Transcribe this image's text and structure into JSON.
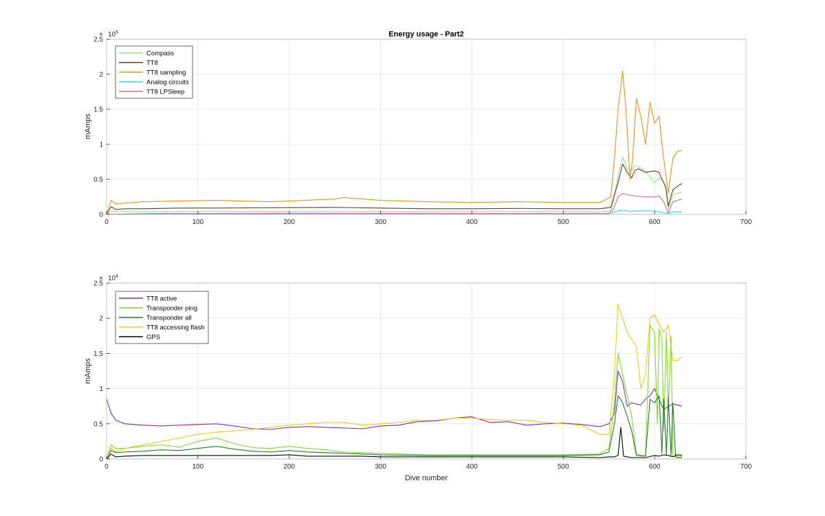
{
  "chart_data": [
    {
      "type": "line",
      "title": "Energy usage - Part2",
      "xlabel": "",
      "ylabel": "mAmps",
      "xlim": [
        0,
        700
      ],
      "ylim": [
        0,
        250000
      ],
      "xticks": [
        0,
        100,
        200,
        300,
        400,
        500,
        600,
        700
      ],
      "yticks": [
        0,
        0.5,
        1,
        1.5,
        2,
        2.5
      ],
      "yscale_base": "10",
      "yscale_exp": "5",
      "yscale_factor": 100000,
      "grid": true,
      "legend_position": "top-left",
      "series": [
        {
          "name": "Compass",
          "color": "#8fe88f",
          "x": [
            0,
            5,
            10,
            20,
            40,
            80,
            120,
            180,
            250,
            300,
            350,
            400,
            450,
            500,
            540,
            552,
            556,
            560,
            565,
            570,
            575,
            578,
            582,
            590,
            600,
            605,
            608,
            612,
            615,
            620,
            625,
            630
          ],
          "values": [
            0,
            5000,
            4000,
            4000,
            4000,
            4200,
            4300,
            4500,
            4600,
            4400,
            4200,
            4300,
            4400,
            4300,
            4100,
            5000,
            25000,
            55000,
            82000,
            65000,
            62000,
            70000,
            68000,
            62000,
            45000,
            52000,
            50000,
            38000,
            8000,
            28000,
            30000,
            32000
          ]
        },
        {
          "name": "TT8",
          "color": "#6b3a13",
          "x": [
            0,
            5,
            10,
            20,
            40,
            80,
            120,
            180,
            250,
            300,
            350,
            400,
            450,
            500,
            540,
            552,
            556,
            560,
            565,
            570,
            575,
            578,
            582,
            590,
            600,
            605,
            608,
            612,
            615,
            620,
            625,
            630
          ],
          "values": [
            0,
            11000,
            7000,
            8000,
            8000,
            9000,
            9000,
            9500,
            10000,
            9000,
            8000,
            8000,
            8500,
            8000,
            8000,
            10000,
            28000,
            45000,
            72000,
            60000,
            52000,
            62000,
            65000,
            60000,
            62000,
            60000,
            50000,
            40000,
            12000,
            35000,
            40000,
            44000
          ]
        },
        {
          "name": "TT8 sampling",
          "color": "#e69019",
          "x": [
            0,
            5,
            10,
            20,
            40,
            80,
            120,
            180,
            200,
            250,
            260,
            300,
            350,
            400,
            450,
            500,
            540,
            552,
            556,
            560,
            562,
            565,
            568,
            570,
            573,
            576,
            580,
            585,
            590,
            595,
            600,
            605,
            608,
            612,
            615,
            620,
            625,
            630
          ],
          "values": [
            0,
            20000,
            15000,
            16000,
            18000,
            19000,
            20000,
            18000,
            19000,
            22000,
            24000,
            20000,
            18000,
            17000,
            18000,
            17000,
            17000,
            25000,
            80000,
            150000,
            170000,
            205000,
            160000,
            120000,
            50000,
            80000,
            165000,
            140000,
            100000,
            160000,
            130000,
            140000,
            100000,
            60000,
            30000,
            80000,
            90000,
            91000
          ]
        },
        {
          "name": "Analog circuits",
          "color": "#2ed6e0",
          "x": [
            0,
            50,
            100,
            200,
            300,
            400,
            500,
            550,
            555,
            560,
            565,
            570,
            575,
            580,
            600,
            615,
            620,
            630
          ],
          "values": [
            0,
            1500,
            1500,
            1800,
            1700,
            1500,
            1500,
            1600,
            3000,
            5000,
            6000,
            5000,
            4500,
            5000,
            5000,
            1000,
            4000,
            3000
          ]
        },
        {
          "name": "TT8 LPSleep",
          "color": "#e0609f",
          "x": [
            0,
            50,
            100,
            200,
            300,
            400,
            500,
            550,
            555,
            560,
            565,
            570,
            575,
            580,
            590,
            600,
            605,
            610,
            615,
            620,
            630
          ],
          "values": [
            0,
            1000,
            1000,
            1200,
            1200,
            1200,
            1200,
            1200,
            8000,
            25000,
            30000,
            28000,
            27000,
            26000,
            25000,
            25000,
            26000,
            18000,
            2000,
            18000,
            22000
          ]
        }
      ]
    },
    {
      "type": "line",
      "title": "",
      "xlabel": "Dive number",
      "ylabel": "mAmps",
      "xlim": [
        0,
        700
      ],
      "ylim": [
        0,
        25000
      ],
      "xticks": [
        0,
        100,
        200,
        300,
        400,
        500,
        600,
        700
      ],
      "yticks": [
        0,
        0.5,
        1,
        1.5,
        2,
        2.5
      ],
      "yscale_base": "10",
      "yscale_exp": "4",
      "yscale_factor": 10000,
      "grid": true,
      "legend_position": "top-left",
      "series": [
        {
          "name": "TT8 active",
          "color": "#7e2fa8",
          "x": [
            0,
            5,
            10,
            20,
            40,
            60,
            80,
            100,
            120,
            140,
            160,
            180,
            200,
            220,
            240,
            260,
            280,
            300,
            320,
            340,
            360,
            380,
            400,
            420,
            440,
            460,
            480,
            500,
            520,
            540,
            550,
            556,
            560,
            565,
            570,
            575,
            580,
            585,
            590,
            595,
            600,
            605,
            610,
            615,
            620,
            625,
            630
          ],
          "values": [
            8500,
            6500,
            5500,
            5000,
            4800,
            4700,
            4800,
            4900,
            5000,
            4700,
            4300,
            4200,
            4500,
            4600,
            4500,
            4400,
            4300,
            4700,
            4800,
            5300,
            5400,
            5800,
            6000,
            5200,
            5300,
            4800,
            5000,
            5100,
            4900,
            4600,
            5000,
            6500,
            12500,
            11000,
            7500,
            8000,
            7800,
            7700,
            8500,
            9000,
            10000,
            8500,
            7000,
            7500,
            7800,
            7700,
            7500
          ]
        },
        {
          "name": "Transponder ping",
          "color": "#7fdc24",
          "x": [
            0,
            5,
            10,
            20,
            40,
            60,
            80,
            100,
            120,
            140,
            160,
            180,
            200,
            220,
            240,
            260,
            280,
            300,
            350,
            400,
            450,
            500,
            540,
            550,
            556,
            560,
            565,
            570,
            575,
            580,
            585,
            590,
            595,
            600,
            603,
            605,
            608,
            610,
            613,
            615,
            618,
            620,
            623,
            625,
            630
          ],
          "values": [
            0,
            2000,
            1500,
            1500,
            1800,
            2000,
            1700,
            2500,
            3000,
            2200,
            1600,
            1500,
            1800,
            1500,
            1300,
            1000,
            900,
            800,
            600,
            600,
            600,
            600,
            700,
            1500,
            8000,
            15000,
            12000,
            9000,
            6000,
            800,
            500,
            500,
            19000,
            18000,
            5000,
            18500,
            17000,
            4000,
            18000,
            7000,
            17500,
            400,
            300,
            300,
            300
          ]
        },
        {
          "name": "Transponder all",
          "color": "#1e7a2a",
          "x": [
            0,
            5,
            10,
            20,
            40,
            60,
            80,
            100,
            120,
            140,
            160,
            180,
            200,
            220,
            240,
            260,
            280,
            300,
            350,
            400,
            450,
            500,
            540,
            550,
            556,
            560,
            565,
            570,
            575,
            580,
            590,
            595,
            600,
            605,
            608,
            610,
            613,
            615,
            618,
            620,
            623,
            625,
            630
          ],
          "values": [
            0,
            1200,
            900,
            1000,
            1100,
            1300,
            1200,
            1500,
            1800,
            1400,
            1100,
            1000,
            1200,
            1000,
            900,
            800,
            700,
            600,
            500,
            500,
            500,
            500,
            600,
            1000,
            5000,
            9000,
            8000,
            6000,
            4000,
            500,
            400,
            8500,
            8000,
            9000,
            800,
            8500,
            600,
            8800,
            500,
            8000,
            300,
            200,
            200
          ]
        },
        {
          "name": "TT8 accessing flash",
          "color": "#f5c718",
          "x": [
            0,
            5,
            10,
            20,
            40,
            60,
            80,
            100,
            120,
            140,
            160,
            180,
            200,
            220,
            240,
            260,
            280,
            300,
            320,
            340,
            360,
            380,
            400,
            420,
            440,
            460,
            480,
            500,
            520,
            540,
            550,
            556,
            560,
            565,
            570,
            575,
            580,
            585,
            590,
            595,
            600,
            605,
            610,
            615,
            620,
            625,
            630
          ],
          "values": [
            0,
            1500,
            1000,
            1500,
            2000,
            2500,
            3000,
            3500,
            3800,
            4000,
            4200,
            4500,
            4800,
            5000,
            5200,
            5200,
            4800,
            5000,
            5200,
            5500,
            5500,
            5800,
            5800,
            5600,
            5500,
            5500,
            5200,
            5000,
            4800,
            3500,
            3500,
            12000,
            22000,
            20000,
            18000,
            17000,
            16000,
            10000,
            12000,
            20000,
            20500,
            19000,
            18000,
            19000,
            14000,
            14000,
            14500
          ]
        },
        {
          "name": "GPS",
          "color": "#000000",
          "x": [
            0,
            5,
            10,
            20,
            40,
            60,
            80,
            100,
            120,
            140,
            160,
            180,
            200,
            220,
            240,
            260,
            280,
            300,
            350,
            400,
            450,
            500,
            540,
            550,
            556,
            560,
            563,
            566,
            570,
            575,
            580,
            590,
            600,
            605,
            610,
            615,
            620,
            625,
            630
          ],
          "values": [
            0,
            700,
            300,
            400,
            500,
            500,
            500,
            500,
            500,
            500,
            500,
            500,
            600,
            400,
            400,
            400,
            400,
            300,
            300,
            300,
            300,
            300,
            200,
            300,
            300,
            500,
            4500,
            400,
            300,
            200,
            200,
            200,
            500,
            400,
            600,
            500,
            300,
            600,
            500
          ]
        }
      ]
    }
  ]
}
